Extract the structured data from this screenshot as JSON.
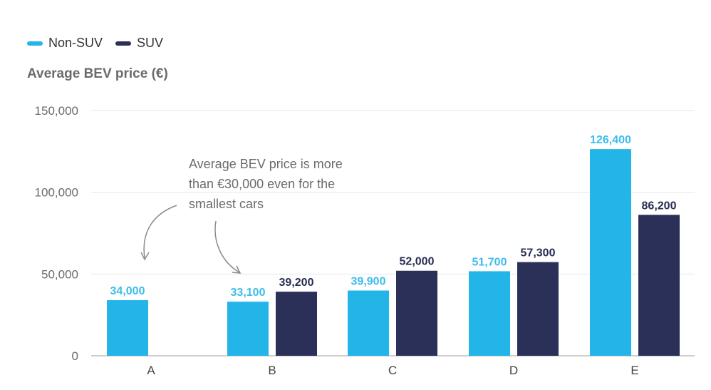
{
  "chart_data": {
    "type": "bar",
    "ylabel": "Average BEV price (€)",
    "categories": [
      "A",
      "B",
      "C",
      "D",
      "E"
    ],
    "series": [
      {
        "name": "Non-SUV",
        "color": "#23b5e8",
        "label_color": "#3cbcec",
        "values": [
          34000,
          33100,
          39900,
          51700,
          126400
        ],
        "labels": [
          "34,000",
          "33,100",
          "39,900",
          "51,700",
          "126,400"
        ]
      },
      {
        "name": "SUV",
        "color": "#2a3058",
        "label_color": "#272d52",
        "values": [
          null,
          39200,
          52000,
          57300,
          86200
        ],
        "labels": [
          "",
          "39,200",
          "52,000",
          "57,300",
          "86,200"
        ]
      }
    ],
    "ylim": [
      0,
      150000
    ],
    "yticks": [
      0,
      50000,
      100000,
      150000
    ],
    "ytick_labels": [
      "0",
      "50,000",
      "100,000",
      "150,000"
    ],
    "grid": true,
    "annotation": {
      "lines": [
        "Average BEV price is more",
        "than €30,000 even for the",
        "smallest cars"
      ]
    }
  }
}
